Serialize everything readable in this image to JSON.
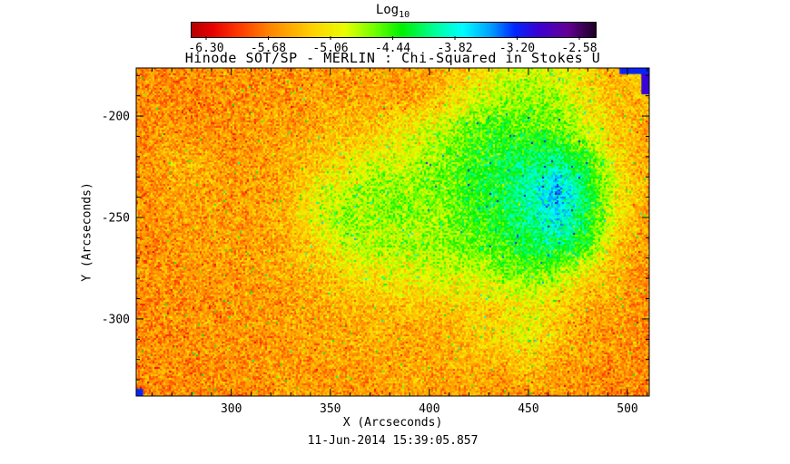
{
  "title": "Hinode SOT/SP - MERLIN : Chi-Squared in Stokes U",
  "caption": "11-Jun-2014 15:39:05.857",
  "colorbar": {
    "title": "Log",
    "title_sub": "10",
    "tick_labels": [
      "-6.30",
      "-5.68",
      "-5.06",
      "-4.44",
      "-3.82",
      "-3.20",
      "-2.58"
    ],
    "tick_values": [
      -6.3,
      -5.68,
      -5.06,
      -4.44,
      -3.82,
      -3.2,
      -2.58
    ]
  },
  "chart_data": {
    "type": "heatmap",
    "title": "Hinode SOT/SP - MERLIN : Chi-Squared in Stokes U",
    "xlabel": "X (Arcseconds)",
    "ylabel": "Y (Arcseconds)",
    "value_label": "Log10 Chi-Squared in Stokes U",
    "x_range": [
      252,
      511
    ],
    "y_range": [
      -338,
      -176.3
    ],
    "x_major_ticks": [
      300,
      350,
      400,
      450,
      500
    ],
    "x_major_tick_labels": [
      "300",
      "350",
      "400",
      "450",
      "500"
    ],
    "y_major_ticks": [
      -200,
      -250,
      -300
    ],
    "y_major_tick_labels": [
      "-200",
      "-250",
      "-300"
    ],
    "minor_tick_step": 10,
    "value_range": [
      -6.45,
      -2.42
    ],
    "background_value": -5.6,
    "noise_sigma": 0.22,
    "grid_cols": 18,
    "grid_rows": 12,
    "grid": [
      [
        -5.6,
        -5.65,
        -5.6,
        -5.55,
        -5.6,
        -5.6,
        -5.5,
        -5.55,
        -5.5,
        -5.55,
        -5.45,
        -5.3,
        -5.05,
        -4.9,
        -4.9,
        -5.2,
        -5.45,
        -5.0
      ],
      [
        -5.6,
        -5.6,
        -5.65,
        -5.6,
        -5.55,
        -5.6,
        -5.5,
        -5.5,
        -5.45,
        -5.5,
        -5.3,
        -5.0,
        -4.8,
        -4.7,
        -4.8,
        -5.1,
        -5.4,
        -5.3
      ],
      [
        -5.65,
        -5.55,
        -5.6,
        -5.6,
        -5.55,
        -5.5,
        -5.45,
        -5.35,
        -5.25,
        -5.05,
        -4.9,
        -4.6,
        -4.45,
        -4.5,
        -4.6,
        -4.9,
        -5.35,
        -5.5
      ],
      [
        -5.6,
        -5.45,
        -5.4,
        -5.55,
        -5.5,
        -5.45,
        -5.3,
        -5.15,
        -5.0,
        -4.9,
        -4.7,
        -4.5,
        -4.3,
        -4.2,
        -4.1,
        -4.5,
        -5.2,
        -5.5
      ],
      [
        -5.6,
        -5.5,
        -5.45,
        -5.5,
        -5.55,
        -5.4,
        -5.05,
        -4.85,
        -4.65,
        -4.7,
        -4.6,
        -4.45,
        -4.25,
        -4.0,
        -3.55,
        -4.2,
        -5.05,
        -5.45
      ],
      [
        -5.6,
        -5.55,
        -5.5,
        -5.55,
        -5.5,
        -5.35,
        -4.95,
        -4.7,
        -4.8,
        -4.65,
        -4.75,
        -4.5,
        -4.3,
        -4.1,
        -3.7,
        -4.3,
        -5.1,
        -5.5
      ],
      [
        -5.65,
        -5.6,
        -5.55,
        -5.5,
        -5.55,
        -5.45,
        -5.2,
        -4.9,
        -4.75,
        -4.85,
        -4.7,
        -4.6,
        -4.45,
        -4.3,
        -4.15,
        -4.5,
        -5.3,
        -5.55
      ],
      [
        -5.6,
        -5.55,
        -5.6,
        -5.55,
        -5.5,
        -5.45,
        -5.35,
        -5.2,
        -5.1,
        -5.0,
        -4.9,
        -4.9,
        -4.8,
        -4.6,
        -4.8,
        -5.15,
        -5.45,
        -5.6
      ],
      [
        -5.65,
        -5.6,
        -5.55,
        -5.6,
        -5.55,
        -5.5,
        -5.45,
        -5.4,
        -5.35,
        -5.3,
        -5.3,
        -5.25,
        -5.2,
        -5.1,
        -5.2,
        -5.4,
        -5.5,
        -5.6
      ],
      [
        -5.6,
        -5.65,
        -5.6,
        -5.55,
        -5.6,
        -5.5,
        -5.5,
        -5.45,
        -5.4,
        -5.5,
        -5.45,
        -5.35,
        -5.2,
        -5.0,
        -5.3,
        -5.5,
        -5.55,
        -5.65
      ],
      [
        -5.65,
        -5.6,
        -5.65,
        -5.6,
        -5.55,
        -5.55,
        -5.5,
        -5.55,
        -5.5,
        -5.45,
        -5.5,
        -5.4,
        -5.45,
        -5.3,
        -5.5,
        -5.55,
        -5.6,
        -5.6
      ],
      [
        -5.65,
        -5.65,
        -5.6,
        -5.65,
        -5.6,
        -5.5,
        -5.55,
        -5.6,
        -5.55,
        -5.4,
        -5.55,
        -5.5,
        -5.6,
        -5.55,
        -5.5,
        -5.6,
        -5.65,
        -5.65
      ]
    ],
    "edge_marks": [
      {
        "x": 507,
        "y": -176.3,
        "w": 4.5,
        "h": 13,
        "value": -3.0
      },
      {
        "x": 496,
        "y": -176.3,
        "w": 15,
        "h": 3,
        "value": -3.2
      },
      {
        "x": 252,
        "y": -334.5,
        "w": 3.5,
        "h": 3.5,
        "value": -3.2
      }
    ],
    "colormap": [
      {
        "t": 0.0,
        "c": "#b40000"
      },
      {
        "t": 0.05,
        "c": "#e80000"
      },
      {
        "t": 0.12,
        "c": "#ff3c00"
      },
      {
        "t": 0.2,
        "c": "#ff8c00"
      },
      {
        "t": 0.3,
        "c": "#ffd200"
      },
      {
        "t": 0.38,
        "c": "#e8ff00"
      },
      {
        "t": 0.46,
        "c": "#64ff00"
      },
      {
        "t": 0.52,
        "c": "#00f000"
      },
      {
        "t": 0.6,
        "c": "#00ff96"
      },
      {
        "t": 0.67,
        "c": "#00ffff"
      },
      {
        "t": 0.74,
        "c": "#00a0ff"
      },
      {
        "t": 0.8,
        "c": "#0028ff"
      },
      {
        "t": 0.86,
        "c": "#3c00d2"
      },
      {
        "t": 0.93,
        "c": "#640096"
      },
      {
        "t": 1.0,
        "c": "#1e0028"
      }
    ],
    "legend_position": "top-colorbar",
    "grid_lines": false
  }
}
